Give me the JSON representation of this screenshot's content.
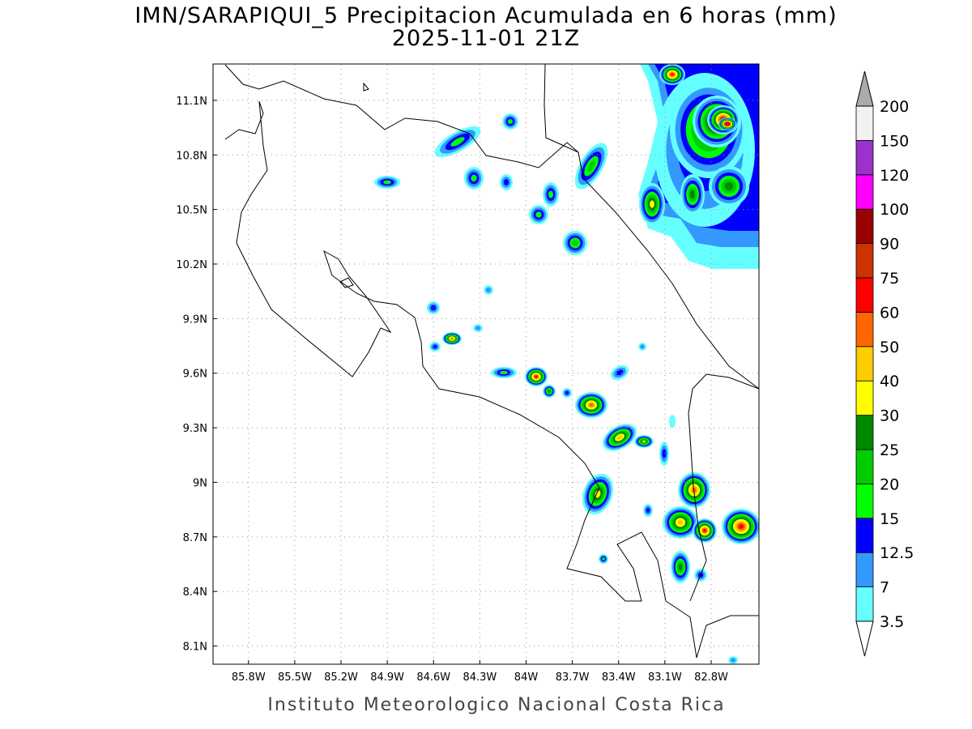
{
  "title": "IMN/SARAPIQUI_5 Precipitacion Acumulada en 6 horas (mm)",
  "subtitle": "2025-11-01 21Z",
  "footer": "Instituto Meteorologico Nacional Costa Rica",
  "map": {
    "lon_range": [
      -86.03,
      -82.49
    ],
    "lat_range": [
      8.0,
      11.3
    ],
    "grid": true,
    "lon_ticks": [
      {
        "value": -85.8,
        "label": "85.8W"
      },
      {
        "value": -85.5,
        "label": "85.5W"
      },
      {
        "value": -85.2,
        "label": "85.2W"
      },
      {
        "value": -84.9,
        "label": "84.9W"
      },
      {
        "value": -84.6,
        "label": "84.6W"
      },
      {
        "value": -84.3,
        "label": "84.3W"
      },
      {
        "value": -84.0,
        "label": "84W"
      },
      {
        "value": -83.7,
        "label": "83.7W"
      },
      {
        "value": -83.4,
        "label": "83.4W"
      },
      {
        "value": -83.1,
        "label": "83.1W"
      },
      {
        "value": -82.8,
        "label": "82.8W"
      }
    ],
    "lat_ticks": [
      {
        "value": 11.1,
        "label": "11.1N"
      },
      {
        "value": 10.8,
        "label": "10.8N"
      },
      {
        "value": 10.5,
        "label": "10.5N"
      },
      {
        "value": 10.2,
        "label": "10.2N"
      },
      {
        "value": 9.9,
        "label": "9.9N"
      },
      {
        "value": 9.6,
        "label": "9.6N"
      },
      {
        "value": 9.3,
        "label": "9.3N"
      },
      {
        "value": 9.0,
        "label": "9N"
      },
      {
        "value": 8.7,
        "label": "8.7N"
      },
      {
        "value": 8.4,
        "label": "8.4N"
      },
      {
        "value": 8.1,
        "label": "8.1N"
      }
    ]
  },
  "colorbar": {
    "levels": [
      3.5,
      7,
      12.5,
      15,
      20,
      25,
      30,
      40,
      50,
      60,
      75,
      90,
      100,
      120,
      150,
      200
    ],
    "colors": [
      "#66ffff",
      "#3399ff",
      "#0000ff",
      "#00ff00",
      "#00cc00",
      "#008800",
      "#ffff00",
      "#ffcc00",
      "#ff6600",
      "#ff0000",
      "#cc3300",
      "#990000",
      "#ff00ff",
      "#9933cc",
      "#f2f2f2"
    ],
    "over_color": "#aaaaaa",
    "under_color": "#ffffff"
  }
}
